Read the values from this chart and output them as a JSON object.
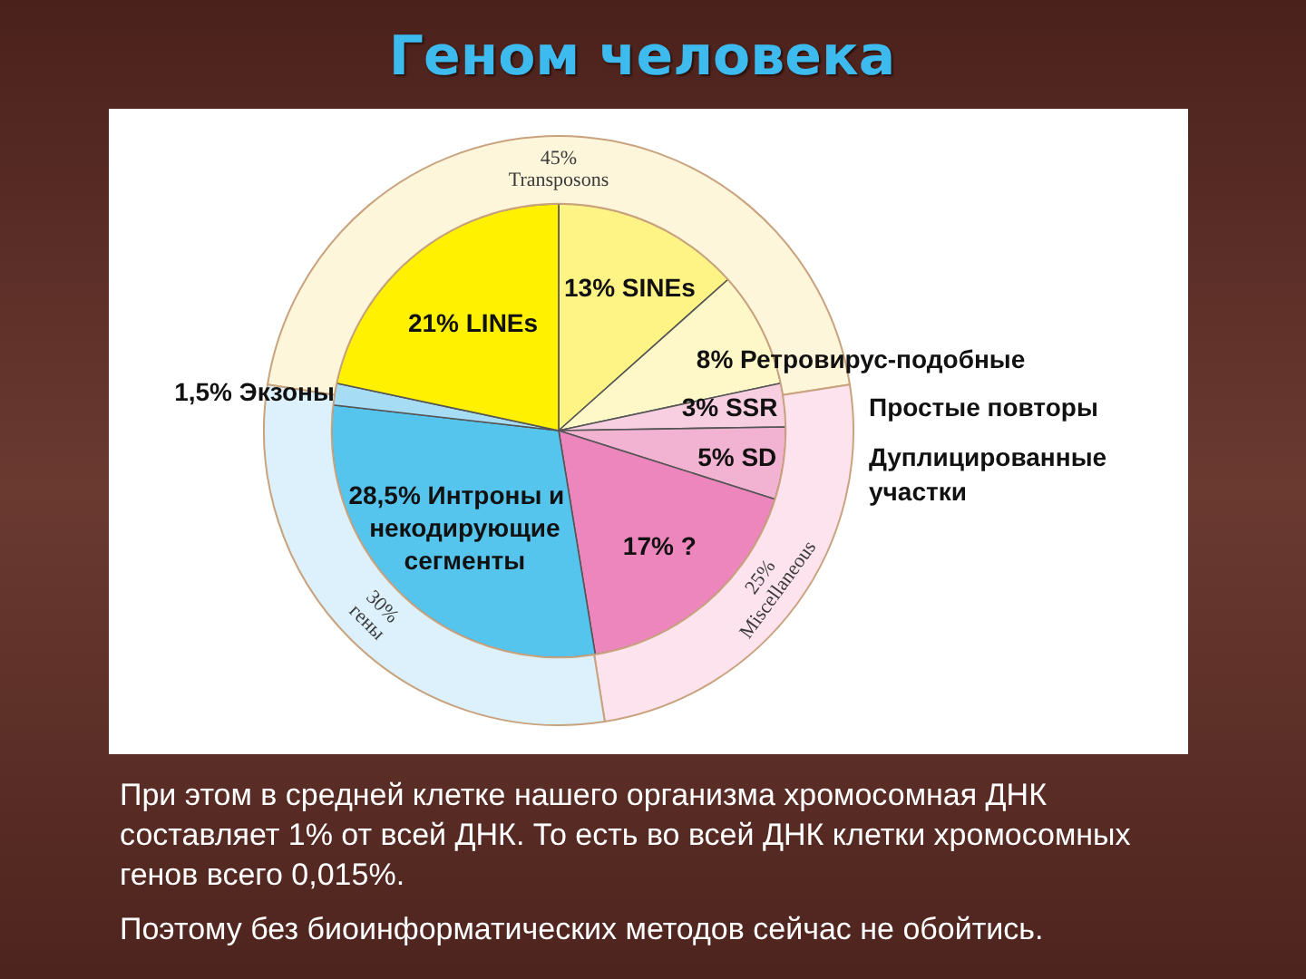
{
  "chart_data": [
    {
      "type": "donut",
      "title": "Геном человека",
      "categories": [
        "Transposons",
        "Miscellaneous",
        "гены"
      ],
      "values": [
        45,
        25,
        30
      ],
      "value_labels": [
        "45%",
        "25%",
        "30%"
      ],
      "colors": [
        "#fdf6da",
        "#fde3ed",
        "#dcf1fb"
      ]
    },
    {
      "type": "pie",
      "categories": [
        "SINEs",
        "Ретровирус-подобные",
        "SSR",
        "SD",
        "?",
        "Интроны и некодирующие сегменты",
        "Экзоны",
        "LINEs"
      ],
      "values": [
        13,
        8,
        3,
        5,
        17,
        28.5,
        1.5,
        21
      ],
      "value_labels": [
        "13%",
        "8%",
        "3%",
        "5%",
        "17%",
        "28,5%",
        "1,5%",
        "21%"
      ],
      "colors": [
        "#fef486",
        "#fef8c8",
        "#f7cfe1",
        "#f2b3d2",
        "#ec86bd",
        "#56c5ee",
        "#a6dcf4",
        "#fff100"
      ],
      "annotations": [
        {
          "text": "Простые повторы",
          "x": "SSR"
        },
        {
          "text": "Дуплицированные участки",
          "x": "SD"
        },
        "При этом в средней клетке нашего организма хромосомная ДНК составляет 1% от всей ДНК. То есть во всей ДНК клетки хромосомных генов всего 0,015%.",
        "Поэтому без биоинформатических методов сейчас не обойтись."
      ]
    }
  ]
}
